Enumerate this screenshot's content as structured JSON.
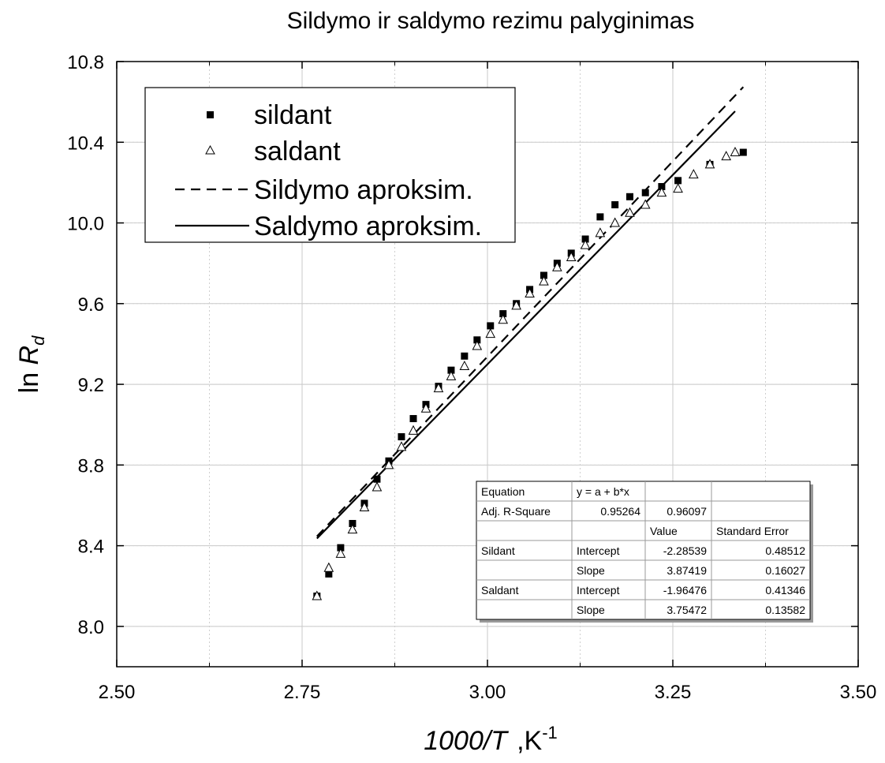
{
  "chart_data": {
    "type": "scatter",
    "title": "Sildymo ir saldymo rezimu palyginimas",
    "xlabel": {
      "main": "1000/T",
      "unit": ",K",
      "unit_sup": "-1"
    },
    "ylabel": {
      "main": "ln ",
      "var": "R",
      "sub": "d"
    },
    "xlim": [
      2.5,
      3.5
    ],
    "ylim": [
      7.8,
      10.8
    ],
    "xticks": [
      2.5,
      2.75,
      3.0,
      3.25,
      3.5
    ],
    "xtick_labels": [
      "2.50",
      "2.75",
      "3.00",
      "3.25",
      "3.50"
    ],
    "yticks": [
      8.0,
      8.4,
      8.8,
      9.2,
      9.6,
      10.0,
      10.4,
      10.8
    ],
    "ytick_labels": [
      "8.0",
      "8.4",
      "8.8",
      "9.2",
      "9.6",
      "10.0",
      "10.4",
      "10.8"
    ],
    "grid": true,
    "legend_position": "top-left",
    "series": [
      {
        "name": "sildant",
        "kind": "points",
        "marker": "filled-square",
        "x": [
          2.77,
          2.786,
          2.802,
          2.818,
          2.834,
          2.851,
          2.867,
          2.884,
          2.9,
          2.917,
          2.934,
          2.951,
          2.969,
          2.986,
          3.004,
          3.021,
          3.039,
          3.057,
          3.076,
          3.094,
          3.113,
          3.132,
          3.152,
          3.172,
          3.192,
          3.213,
          3.235,
          3.257,
          3.3,
          3.345
        ],
        "y": [
          8.15,
          8.26,
          8.39,
          8.51,
          8.61,
          8.73,
          8.82,
          8.94,
          9.03,
          9.1,
          9.19,
          9.27,
          9.34,
          9.42,
          9.49,
          9.55,
          9.6,
          9.67,
          9.74,
          9.8,
          9.85,
          9.92,
          10.03,
          10.09,
          10.13,
          10.15,
          10.18,
          10.21,
          10.29,
          10.35
        ]
      },
      {
        "name": "saldant",
        "kind": "points",
        "marker": "open-triangle",
        "x": [
          2.77,
          2.786,
          2.802,
          2.818,
          2.834,
          2.851,
          2.867,
          2.884,
          2.9,
          2.917,
          2.934,
          2.951,
          2.969,
          2.986,
          3.004,
          3.021,
          3.039,
          3.057,
          3.076,
          3.094,
          3.113,
          3.132,
          3.152,
          3.172,
          3.192,
          3.213,
          3.235,
          3.257,
          3.278,
          3.3,
          3.322,
          3.334
        ],
        "y": [
          8.15,
          8.29,
          8.36,
          8.48,
          8.59,
          8.69,
          8.8,
          8.89,
          8.97,
          9.08,
          9.18,
          9.24,
          9.29,
          9.39,
          9.45,
          9.52,
          9.59,
          9.65,
          9.71,
          9.78,
          9.83,
          9.89,
          9.95,
          10.0,
          10.05,
          10.09,
          10.15,
          10.17,
          10.24,
          10.29,
          10.33,
          10.35
        ]
      },
      {
        "name": "Sildymo aproksim.",
        "kind": "line",
        "style": "dashed",
        "intercept": -2.28539,
        "slope": 3.87419,
        "x_range": [
          2.77,
          3.345
        ]
      },
      {
        "name": "Saldymo aproksim.",
        "kind": "line",
        "style": "solid",
        "intercept": -1.96476,
        "slope": 3.75472,
        "x_range": [
          2.77,
          3.334
        ]
      }
    ],
    "fit_table": {
      "rows": [
        [
          "Equation",
          "y = a + b*x",
          "",
          ""
        ],
        [
          "Adj. R-Square",
          "0.95264",
          "0.96097",
          ""
        ],
        [
          "",
          "",
          "Value",
          "Standard Error"
        ],
        [
          "Sildant",
          "Intercept",
          "-2.28539",
          "0.48512"
        ],
        [
          "",
          "Slope",
          "3.87419",
          "0.16027"
        ],
        [
          "Saldant",
          "Intercept",
          "-1.96476",
          "0.41346"
        ],
        [
          "",
          "Slope",
          "3.75472",
          "0.13582"
        ]
      ]
    }
  }
}
